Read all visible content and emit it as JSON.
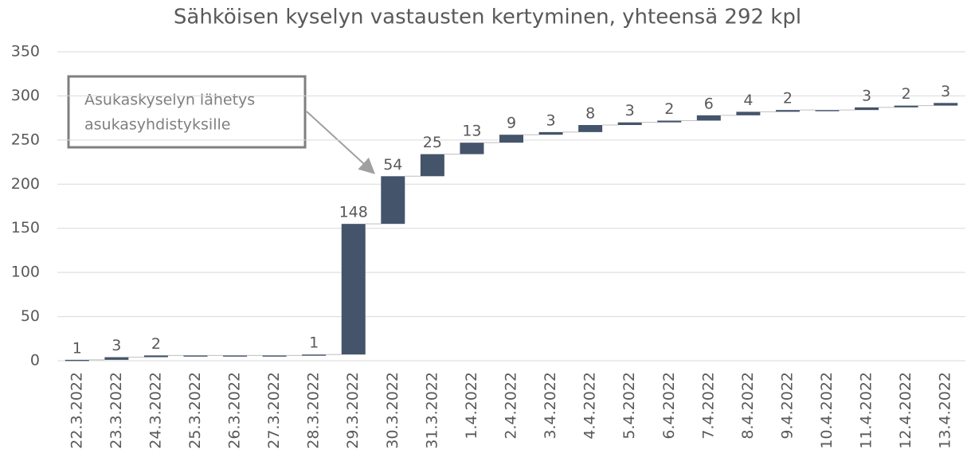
{
  "chart_data": {
    "type": "waterfall",
    "title": "Sähköisen kyselyn vastausten kertyminen, yhteensä 292 kpl",
    "categories": [
      "22.3.2022",
      "23.3.2022",
      "24.3.2022",
      "25.3.2022",
      "26.3.2022",
      "27.3.2022",
      "28.3.2022",
      "29.3.2022",
      "30.3.2022",
      "31.3.2022",
      "1.4.2022",
      "2.4.2022",
      "3.4.2022",
      "4.4.2022",
      "5.4.2022",
      "6.4.2022",
      "7.4.2022",
      "8.4.2022",
      "9.4.2022",
      "10.4.2022",
      "11.4.2022",
      "12.4.2022",
      "13.4.2022"
    ],
    "values": [
      1,
      3,
      2,
      0,
      0,
      0,
      1,
      148,
      54,
      25,
      13,
      9,
      3,
      8,
      3,
      2,
      6,
      4,
      2,
      0,
      3,
      2,
      3
    ],
    "color": "#44546a",
    "ylim": [
      0,
      350
    ],
    "yticks": [
      0,
      50,
      100,
      150,
      200,
      250,
      300,
      350
    ],
    "grid": true,
    "annotation": {
      "lines": [
        "Asukaskyselyn lähetys",
        "asukasyhdistyksille"
      ]
    }
  }
}
